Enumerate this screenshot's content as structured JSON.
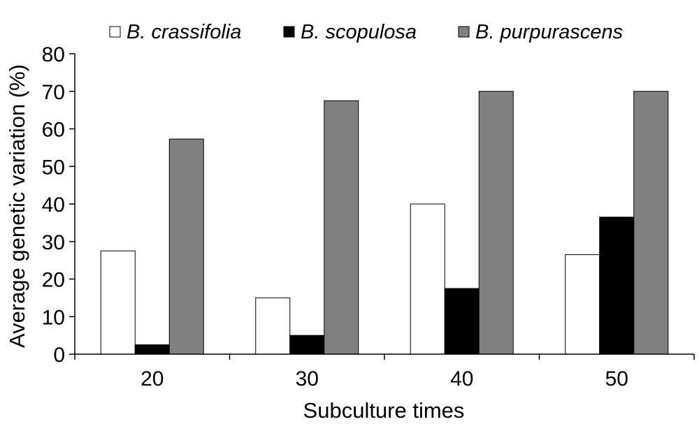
{
  "chart_data": {
    "type": "bar",
    "title": "",
    "xlabel": "Subculture times",
    "ylabel": "Average genetic variation (%)",
    "categories": [
      "20",
      "30",
      "40",
      "50"
    ],
    "ylim": [
      0,
      80
    ],
    "yticks": [
      0,
      10,
      20,
      30,
      40,
      50,
      60,
      70,
      80
    ],
    "grid": false,
    "legend_position": "top",
    "series": [
      {
        "name": "B. crassifolia",
        "color": "#ffffff",
        "values": [
          27.5,
          15,
          40,
          26.5
        ]
      },
      {
        "name": "B. scopulosa",
        "color": "#000000",
        "values": [
          2.5,
          5,
          17.5,
          36.5
        ]
      },
      {
        "name": "B. purpurascens",
        "color": "#808080",
        "values": [
          57.3,
          67.5,
          70,
          70
        ]
      }
    ]
  }
}
